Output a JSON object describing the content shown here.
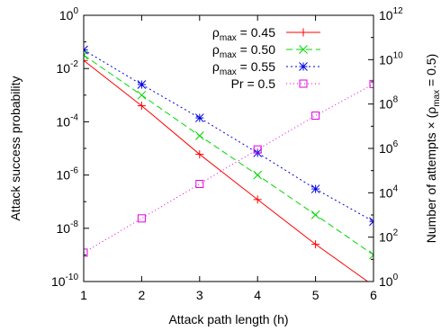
{
  "chart_data": {
    "type": "line",
    "xlabel": "Attack path length (h)",
    "ylabel_left": "Attack success probability",
    "ylabel_right_prefix": "Number of attempts × (ρ",
    "ylabel_right_sub": "max",
    "ylabel_right_suffix": " = 0.5)",
    "x": [
      1,
      2,
      3,
      4,
      5,
      6
    ],
    "xlim": [
      1,
      6
    ],
    "x_ticks": [
      "1",
      "2",
      "3",
      "4",
      "5",
      "6"
    ],
    "ylim_left_log10": [
      -10,
      0
    ],
    "y_left_ticks": [
      {
        "base": "10",
        "exp": "0"
      },
      {
        "base": "10",
        "exp": "-2"
      },
      {
        "base": "10",
        "exp": "-4"
      },
      {
        "base": "10",
        "exp": "-6"
      },
      {
        "base": "10",
        "exp": "-8"
      },
      {
        "base": "10",
        "exp": "-10"
      }
    ],
    "ylim_right_log10": [
      0,
      12
    ],
    "y_right_ticks": [
      {
        "base": "10",
        "exp": "12"
      },
      {
        "base": "10",
        "exp": "10"
      },
      {
        "base": "10",
        "exp": "8"
      },
      {
        "base": "10",
        "exp": "6"
      },
      {
        "base": "10",
        "exp": "4"
      },
      {
        "base": "10",
        "exp": "2"
      },
      {
        "base": "10",
        "exp": "0"
      }
    ],
    "legend_position": "top-right",
    "series": [
      {
        "name_prefix": "ρ",
        "name_sub": "max",
        "name_suffix": " = 0.45",
        "axis": "left",
        "color": "#ff0000",
        "dash": "",
        "marker": "plus",
        "values": [
          0.02,
          0.0004,
          6e-06,
          1.2e-07,
          2.5e-09,
          7e-11
        ]
      },
      {
        "name_prefix": "ρ",
        "name_sub": "max",
        "name_suffix": " = 0.50",
        "axis": "left",
        "color": "#00d800",
        "dash": "7,4",
        "marker": "cross",
        "values": [
          0.032,
          0.001,
          3e-05,
          1e-06,
          3.2e-08,
          1e-09
        ]
      },
      {
        "name_prefix": "ρ",
        "name_sub": "max",
        "name_suffix": " = 0.55",
        "axis": "left",
        "color": "#0000e0",
        "dash": "2,3",
        "marker": "star",
        "values": [
          0.05,
          0.0025,
          0.00014,
          6.8e-06,
          3e-07,
          1.8e-08
        ]
      },
      {
        "name_prefix": "Pr = 0.5",
        "name_sub": "",
        "name_suffix": "",
        "axis": "right",
        "color": "#e000e0",
        "dash": "1,3",
        "marker": "square",
        "values": [
          20,
          700,
          25000,
          900000,
          30000000,
          800000000
        ]
      }
    ]
  }
}
